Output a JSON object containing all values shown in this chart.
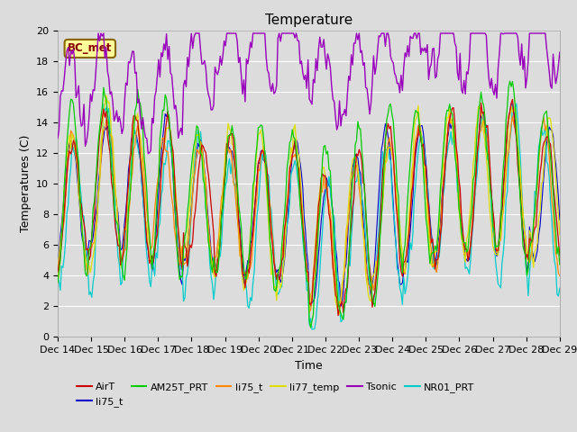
{
  "title": "Temperature",
  "xlabel": "Time",
  "ylabel": "Temperatures (C)",
  "annotation": "BC_met",
  "ylim": [
    0,
    20
  ],
  "x_tick_labels": [
    "Dec 14",
    "Dec 15",
    "Dec 16",
    "Dec 17",
    "Dec 18",
    "Dec 19",
    "Dec 20",
    "Dec 21",
    "Dec 22",
    "Dec 23",
    "Dec 24",
    "Dec 25",
    "Dec 26",
    "Dec 27",
    "Dec 28",
    "Dec 29"
  ],
  "background_color": "#dcdcdc",
  "axes_background": "#dcdcdc",
  "grid_color": "#ffffff",
  "title_fontsize": 11,
  "label_fontsize": 9,
  "tick_fontsize": 8
}
